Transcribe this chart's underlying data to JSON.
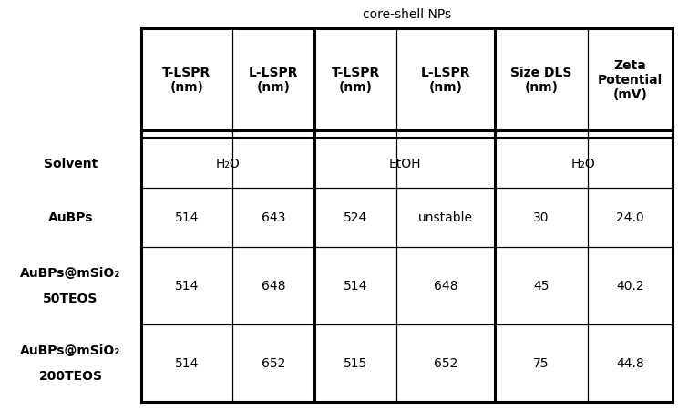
{
  "title": "core-shell NPs",
  "header_labels": [
    "T-LSPR\n(nm)",
    "L-LSPR\n(nm)",
    "T-LSPR\n(nm)",
    "L-LSPR\n(nm)",
    "Size DLS\n(nm)",
    "Zeta\nPotential\n(mV)"
  ],
  "row_labels": [
    "Solvent",
    "AuBPs",
    "AuBPs@mSiO₂\n50TEOS",
    "AuBPs@mSiO₂\n200TEOS"
  ],
  "solvent_labels": [
    "H₂O",
    "EtOH",
    "H₂O"
  ],
  "table_data": [
    [
      "514",
      "643",
      "524",
      "unstable",
      "30",
      "24.0"
    ],
    [
      "514",
      "648",
      "514",
      "648",
      "45",
      "40.2"
    ],
    [
      "514",
      "652",
      "515",
      "652",
      "75",
      "44.8"
    ]
  ],
  "bg_color": "#ffffff",
  "text_color": "#000000",
  "header_fontsize": 10,
  "data_fontsize": 10,
  "title_fontsize": 10
}
